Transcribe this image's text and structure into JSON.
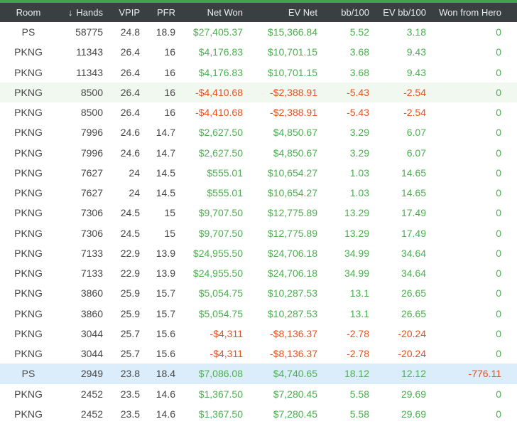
{
  "palette": {
    "accent_green_bar": "#3fa44b",
    "header_bg": "#3a3f41",
    "header_text": "#ededed",
    "positive": "#4caf50",
    "negative": "#e8501f",
    "neutral_text": "#474747",
    "row_highlight_green": "#f0f8ef",
    "row_selected_blue": "#dbedfb"
  },
  "table": {
    "sort": {
      "column": "Hands",
      "direction": "descending",
      "icon": "↓"
    },
    "columns": [
      {
        "id": "room",
        "label": "Room",
        "align": "center",
        "colored": false,
        "sorted": false
      },
      {
        "id": "hands",
        "label": "Hands",
        "align": "right",
        "colored": false,
        "sorted": true
      },
      {
        "id": "vpip",
        "label": "VPIP",
        "align": "right",
        "colored": false,
        "sorted": false
      },
      {
        "id": "pfr",
        "label": "PFR",
        "align": "right",
        "colored": false,
        "sorted": false
      },
      {
        "id": "net_won",
        "label": "Net Won",
        "align": "right",
        "colored": true,
        "sorted": false
      },
      {
        "id": "ev_net",
        "label": "EV Net",
        "align": "right",
        "colored": true,
        "sorted": false
      },
      {
        "id": "bb100",
        "label": "bb/100",
        "align": "right",
        "colored": true,
        "sorted": false
      },
      {
        "id": "ev_bb100",
        "label": "EV bb/100",
        "align": "right",
        "colored": true,
        "sorted": false
      },
      {
        "id": "won_from_hero",
        "label": "Won from Hero",
        "align": "right",
        "colored": true,
        "sorted": false
      }
    ],
    "rows": [
      {
        "room": "PS",
        "hands": "58775",
        "vpip": "24.8",
        "pfr": "18.9",
        "net_won": "$27,405.37",
        "ev_net": "$15,366.84",
        "bb100": "5.52",
        "ev_bb100": "3.18",
        "won_from_hero": "0",
        "highlight": null
      },
      {
        "room": "PKNG",
        "hands": "11343",
        "vpip": "26.4",
        "pfr": "16",
        "net_won": "$4,176.83",
        "ev_net": "$10,701.15",
        "bb100": "3.68",
        "ev_bb100": "9.43",
        "won_from_hero": "0",
        "highlight": null
      },
      {
        "room": "PKNG",
        "hands": "11343",
        "vpip": "26.4",
        "pfr": "16",
        "net_won": "$4,176.83",
        "ev_net": "$10,701.15",
        "bb100": "3.68",
        "ev_bb100": "9.43",
        "won_from_hero": "0",
        "highlight": null
      },
      {
        "room": "PKNG",
        "hands": "8500",
        "vpip": "26.4",
        "pfr": "16",
        "net_won": "-$4,410.68",
        "ev_net": "-$2,388.91",
        "bb100": "-5.43",
        "ev_bb100": "-2.54",
        "won_from_hero": "0",
        "highlight": "green"
      },
      {
        "room": "PKNG",
        "hands": "8500",
        "vpip": "26.4",
        "pfr": "16",
        "net_won": "-$4,410.68",
        "ev_net": "-$2,388.91",
        "bb100": "-5.43",
        "ev_bb100": "-2.54",
        "won_from_hero": "0",
        "highlight": null
      },
      {
        "room": "PKNG",
        "hands": "7996",
        "vpip": "24.6",
        "pfr": "14.7",
        "net_won": "$2,627.50",
        "ev_net": "$4,850.67",
        "bb100": "3.29",
        "ev_bb100": "6.07",
        "won_from_hero": "0",
        "highlight": null
      },
      {
        "room": "PKNG",
        "hands": "7996",
        "vpip": "24.6",
        "pfr": "14.7",
        "net_won": "$2,627.50",
        "ev_net": "$4,850.67",
        "bb100": "3.29",
        "ev_bb100": "6.07",
        "won_from_hero": "0",
        "highlight": null
      },
      {
        "room": "PKNG",
        "hands": "7627",
        "vpip": "24",
        "pfr": "14.5",
        "net_won": "$555.01",
        "ev_net": "$10,654.27",
        "bb100": "1.03",
        "ev_bb100": "14.65",
        "won_from_hero": "0",
        "highlight": null
      },
      {
        "room": "PKNG",
        "hands": "7627",
        "vpip": "24",
        "pfr": "14.5",
        "net_won": "$555.01",
        "ev_net": "$10,654.27",
        "bb100": "1.03",
        "ev_bb100": "14.65",
        "won_from_hero": "0",
        "highlight": null
      },
      {
        "room": "PKNG",
        "hands": "7306",
        "vpip": "24.5",
        "pfr": "15",
        "net_won": "$9,707.50",
        "ev_net": "$12,775.89",
        "bb100": "13.29",
        "ev_bb100": "17.49",
        "won_from_hero": "0",
        "highlight": null
      },
      {
        "room": "PKNG",
        "hands": "7306",
        "vpip": "24.5",
        "pfr": "15",
        "net_won": "$9,707.50",
        "ev_net": "$12,775.89",
        "bb100": "13.29",
        "ev_bb100": "17.49",
        "won_from_hero": "0",
        "highlight": null
      },
      {
        "room": "PKNG",
        "hands": "7133",
        "vpip": "22.9",
        "pfr": "13.9",
        "net_won": "$24,955.50",
        "ev_net": "$24,706.18",
        "bb100": "34.99",
        "ev_bb100": "34.64",
        "won_from_hero": "0",
        "highlight": null
      },
      {
        "room": "PKNG",
        "hands": "7133",
        "vpip": "22.9",
        "pfr": "13.9",
        "net_won": "$24,955.50",
        "ev_net": "$24,706.18",
        "bb100": "34.99",
        "ev_bb100": "34.64",
        "won_from_hero": "0",
        "highlight": null
      },
      {
        "room": "PKNG",
        "hands": "3860",
        "vpip": "25.9",
        "pfr": "15.7",
        "net_won": "$5,054.75",
        "ev_net": "$10,287.53",
        "bb100": "13.1",
        "ev_bb100": "26.65",
        "won_from_hero": "0",
        "highlight": null
      },
      {
        "room": "PKNG",
        "hands": "3860",
        "vpip": "25.9",
        "pfr": "15.7",
        "net_won": "$5,054.75",
        "ev_net": "$10,287.53",
        "bb100": "13.1",
        "ev_bb100": "26.65",
        "won_from_hero": "0",
        "highlight": null
      },
      {
        "room": "PKNG",
        "hands": "3044",
        "vpip": "25.7",
        "pfr": "15.6",
        "net_won": "-$4,311",
        "ev_net": "-$8,136.37",
        "bb100": "-2.78",
        "ev_bb100": "-20.24",
        "won_from_hero": "0",
        "highlight": null
      },
      {
        "room": "PKNG",
        "hands": "3044",
        "vpip": "25.7",
        "pfr": "15.6",
        "net_won": "-$4,311",
        "ev_net": "-$8,136.37",
        "bb100": "-2.78",
        "ev_bb100": "-20.24",
        "won_from_hero": "0",
        "highlight": null
      },
      {
        "room": "PS",
        "hands": "2949",
        "vpip": "23.8",
        "pfr": "18.4",
        "net_won": "$7,086.08",
        "ev_net": "$4,740.65",
        "bb100": "18.12",
        "ev_bb100": "12.12",
        "won_from_hero": "-776.11",
        "highlight": "blue"
      },
      {
        "room": "PKNG",
        "hands": "2452",
        "vpip": "23.5",
        "pfr": "14.6",
        "net_won": "$1,367.50",
        "ev_net": "$7,280.45",
        "bb100": "5.58",
        "ev_bb100": "29.69",
        "won_from_hero": "0",
        "highlight": null
      },
      {
        "room": "PKNG",
        "hands": "2452",
        "vpip": "23.5",
        "pfr": "14.6",
        "net_won": "$1,367.50",
        "ev_net": "$7,280.45",
        "bb100": "5.58",
        "ev_bb100": "29.69",
        "won_from_hero": "0",
        "highlight": null
      }
    ]
  }
}
